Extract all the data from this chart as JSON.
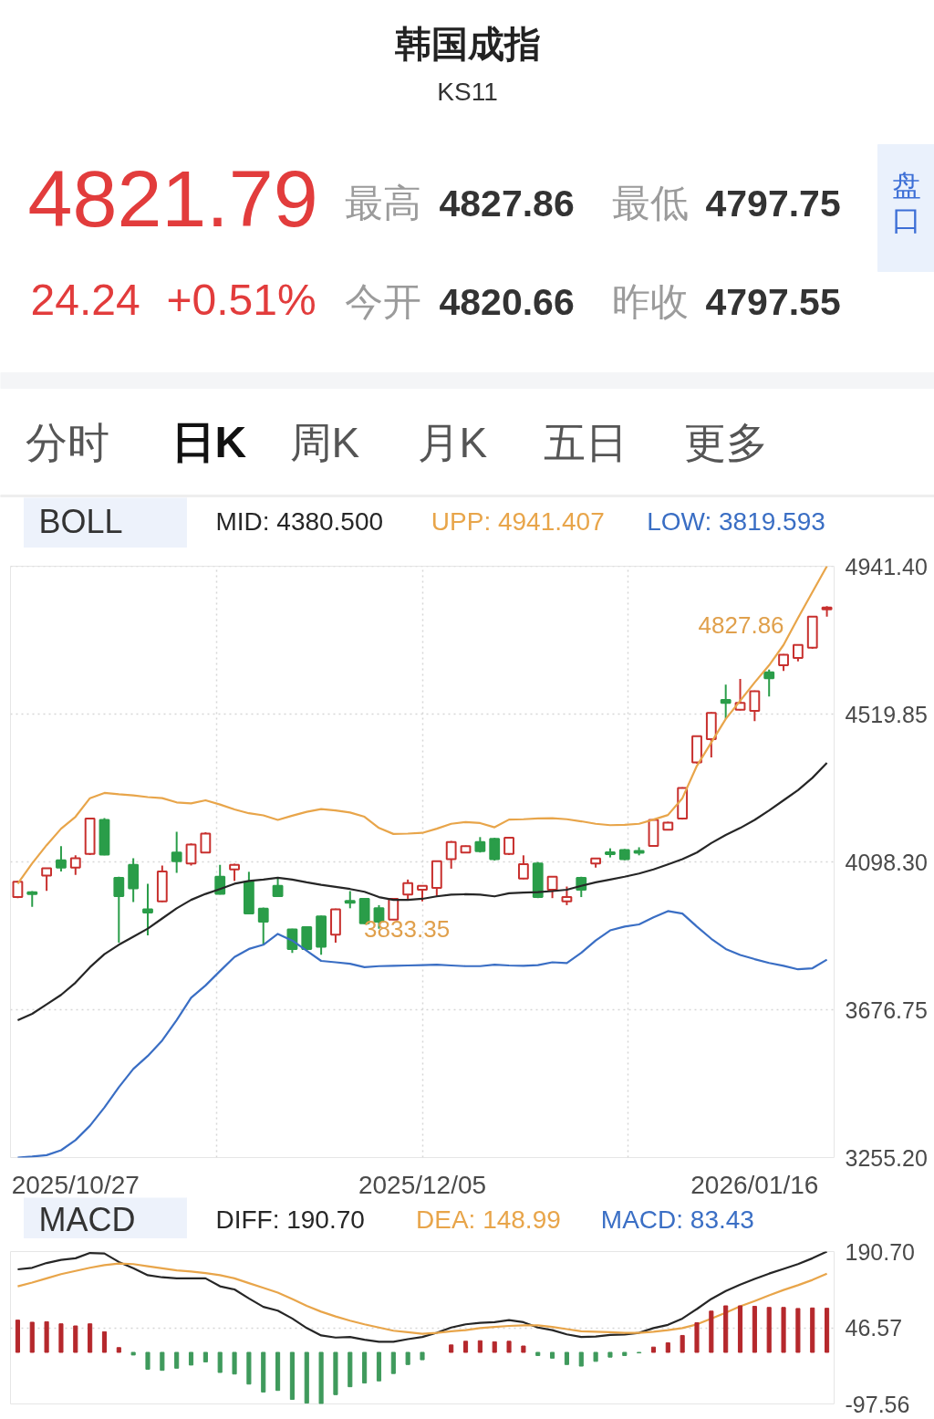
{
  "chart_data": [
    {
      "type": "other",
      "title": "韩国成指",
      "subtitle": "KS11",
      "annotations": [
        "4821.79",
        "24.24",
        "+0.51%",
        "最高",
        "4827.86",
        "最低",
        "4797.75",
        "今开",
        "4820.66",
        "昨收",
        "4797.55",
        "盘口",
        "分时",
        "日K",
        "周K",
        "月K",
        "五日",
        "更多"
      ]
    },
    {
      "type": "candlestick",
      "legend_title": "BOLL",
      "legend": "top",
      "grid": true,
      "categories": [
        null,
        null,
        null,
        null,
        "2025/10/27",
        null,
        null,
        null,
        null,
        null,
        null,
        null,
        null,
        null,
        null,
        null,
        null,
        null,
        null,
        null,
        null,
        null,
        null,
        null,
        null,
        null,
        null,
        null,
        "2025/12/05",
        null,
        null,
        null,
        null,
        null,
        null,
        null,
        null,
        null,
        null,
        null,
        null,
        null,
        null,
        null,
        null,
        null,
        null,
        null,
        null,
        null,
        null,
        "2026/01/16",
        null,
        null,
        null,
        null,
        null
      ],
      "ylim": [
        3255.2,
        4941.407
      ],
      "yticks": [
        {
          "value": 4941.4,
          "label": "4941.40"
        },
        {
          "value": 4519.85,
          "label": "4519.85"
        },
        {
          "value": 4098.3,
          "label": "4098.30"
        },
        {
          "value": 3676.75,
          "label": "3676.75"
        },
        {
          "value": 3255.2,
          "label": "3255.20"
        }
      ],
      "ohlc": [
        [
          3998,
          4044,
          3995,
          4042
        ],
        [
          4010,
          4015,
          3970,
          4008
        ],
        [
          4059,
          4080,
          4016,
          4080
        ],
        [
          4103,
          4143,
          4071,
          4082
        ],
        [
          4082,
          4117,
          4061,
          4109
        ],
        [
          4121,
          4224,
          4118,
          4222
        ],
        [
          4218,
          4223,
          4117,
          4119
        ],
        [
          4053,
          4056,
          3868,
          4001
        ],
        [
          4090,
          4109,
          3984,
          4023
        ],
        [
          3963,
          4036,
          3889,
          3954
        ],
        [
          3986,
          4088,
          3984,
          4071
        ],
        [
          4125,
          4184,
          4067,
          4100
        ],
        [
          4094,
          4151,
          4088,
          4148
        ],
        [
          4125,
          4183,
          4123,
          4179
        ],
        [
          4056,
          4090,
          4005,
          4007
        ],
        [
          4077,
          4093,
          4044,
          4090
        ],
        [
          4042,
          4070,
          3949,
          3951
        ],
        [
          3965,
          3968,
          3862,
          3928
        ],
        [
          4030,
          4051,
          3999,
          4001
        ],
        [
          3906,
          3908,
          3839,
          3850
        ],
        [
          3912,
          3914,
          3845,
          3850
        ],
        [
          3943,
          3945,
          3833.35,
          3856
        ],
        [
          3891,
          3965,
          3868,
          3963
        ],
        [
          3986,
          4015,
          3966,
          3983
        ],
        [
          3993,
          3995,
          3921,
          3923
        ],
        [
          3966,
          3975,
          3908,
          3928
        ],
        [
          3934,
          3995,
          3932,
          3993
        ],
        [
          4005,
          4048,
          3993,
          4038
        ],
        [
          4019,
          4032,
          3986,
          4030
        ],
        [
          4024,
          4102,
          4001,
          4100
        ],
        [
          4106,
          4158,
          4079,
          4155
        ],
        [
          4125,
          4145,
          4123,
          4143
        ],
        [
          4155,
          4169,
          4125,
          4129
        ],
        [
          4164,
          4167,
          4102,
          4106
        ],
        [
          4121,
          4169,
          4118,
          4167
        ],
        [
          4051,
          4117,
          4049,
          4092
        ],
        [
          4094,
          4098,
          3995,
          3998
        ],
        [
          4019,
          4058,
          3995,
          4056
        ],
        [
          3986,
          4028,
          3975,
          3998
        ],
        [
          4053,
          4056,
          3998,
          4019
        ],
        [
          4094,
          4109,
          4082,
          4108
        ],
        [
          4125,
          4137,
          4111,
          4121
        ],
        [
          4132,
          4135,
          4103,
          4106
        ],
        [
          4129,
          4140,
          4117,
          4125
        ],
        [
          4144,
          4220,
          4142,
          4218
        ],
        [
          4190,
          4213,
          4188,
          4210
        ],
        [
          4222,
          4311,
          4219,
          4309
        ],
        [
          4382,
          4459,
          4379,
          4457
        ],
        [
          4448,
          4525,
          4396,
          4523
        ],
        [
          4560,
          4604,
          4506,
          4552
        ],
        [
          4532,
          4620,
          4530,
          4552
        ],
        [
          4529,
          4587,
          4500,
          4585
        ],
        [
          4639,
          4647,
          4570,
          4622
        ],
        [
          4659,
          4691,
          4643,
          4689
        ],
        [
          4680,
          4719,
          4670,
          4717
        ],
        [
          4709,
          4799,
          4706,
          4797.55
        ],
        [
          4820.66,
          4827.86,
          4797.75,
          4821.79
        ]
      ],
      "colors": [
        "#c8302e",
        "#2a9d49",
        "#c8302e",
        "#2a9d49",
        "#c8302e",
        "#c8302e",
        "#2a9d49",
        "#2a9d49",
        "#2a9d49",
        "#2a9d49",
        "#c8302e",
        "#2a9d49",
        "#c8302e",
        "#c8302e",
        "#2a9d49",
        "#c8302e",
        "#2a9d49",
        "#2a9d49",
        "#2a9d49",
        "#2a9d49",
        "#2a9d49",
        "#2a9d49",
        "#c8302e",
        "#2a9d49",
        "#2a9d49",
        "#2a9d49",
        "#c8302e",
        "#c8302e",
        "#c8302e",
        "#c8302e",
        "#c8302e",
        "#c8302e",
        "#2a9d49",
        "#2a9d49",
        "#c8302e",
        "#c8302e",
        "#2a9d49",
        "#c8302e",
        "#c8302e",
        "#2a9d49",
        "#c8302e",
        "#2a9d49",
        "#2a9d49",
        "#2a9d49",
        "#c8302e",
        "#c8302e",
        "#c8302e",
        "#c8302e",
        "#c8302e",
        "#2a9d49",
        "#c8302e",
        "#c8302e",
        "#2a9d49",
        "#c8302e",
        "#c8302e",
        "#c8302e",
        "#c8302e"
      ],
      "series": [
        {
          "name": "MID: 4380.500",
          "type": "line",
          "color": "#262626",
          "values": [
            3647,
            3665,
            3692,
            3719,
            3754,
            3798,
            3835,
            3862,
            3885,
            3908,
            3937,
            3966,
            3990,
            4007,
            4021,
            4036,
            4044,
            4048,
            4053,
            4048,
            4040,
            4033,
            4027,
            4021,
            4013,
            3998,
            3990,
            3990,
            3993,
            4000,
            4005,
            4006,
            4005,
            4000,
            4009,
            4011,
            4012,
            4015,
            4019,
            4030,
            4040,
            4048,
            4056,
            4065,
            4077,
            4091,
            4106,
            4125,
            4152,
            4175,
            4195,
            4218,
            4245,
            4274,
            4303,
            4338,
            4380.5
          ]
        },
        {
          "name": "UPP: 4941.407",
          "type": "line",
          "color": "#e8a54a",
          "values": [
            4036,
            4094,
            4146,
            4193,
            4227,
            4280,
            4295,
            4291,
            4288,
            4283,
            4280,
            4268,
            4265,
            4274,
            4262,
            4248,
            4237,
            4231,
            4218,
            4230,
            4241,
            4249,
            4245,
            4239,
            4227,
            4195,
            4178,
            4179,
            4181,
            4193,
            4207,
            4212,
            4209,
            4197,
            4219,
            4220,
            4222,
            4223,
            4220,
            4214,
            4207,
            4203,
            4204,
            4207,
            4219,
            4232,
            4280,
            4372,
            4439,
            4506,
            4558,
            4610,
            4659,
            4717,
            4794,
            4868,
            4941.407
          ]
        },
        {
          "name": "LOW: 3819.593",
          "type": "line",
          "color": "#3a6ec4",
          "values": [
            3255.2,
            3258,
            3262,
            3276,
            3305,
            3346,
            3398,
            3456,
            3508,
            3545,
            3589,
            3647,
            3711,
            3746,
            3787,
            3827,
            3850,
            3862,
            3893,
            3874,
            3845,
            3816,
            3812,
            3808,
            3798,
            3801,
            3802,
            3803,
            3804,
            3805,
            3803,
            3801,
            3801,
            3805,
            3803,
            3802,
            3804,
            3812,
            3810,
            3839,
            3874,
            3903,
            3914,
            3920,
            3940,
            3958,
            3951,
            3914,
            3879,
            3850,
            3833,
            3821,
            3810,
            3802,
            3792,
            3795,
            3819.593
          ]
        }
      ],
      "annotations": [
        "4827.86",
        "3833.35"
      ]
    },
    {
      "type": "bar",
      "legend_title": "MACD",
      "legend": "top",
      "grid": "y",
      "tick_labels": "y",
      "categories": [
        null,
        null,
        null,
        null,
        null,
        null,
        null,
        null,
        null,
        null,
        null,
        null,
        null,
        null,
        null,
        null,
        null,
        null,
        null,
        null,
        null,
        null,
        null,
        null,
        null,
        null,
        null,
        null,
        null,
        null,
        null,
        null,
        null,
        null,
        null,
        null,
        null,
        null,
        null,
        null,
        null,
        null,
        null,
        null,
        null,
        null,
        null,
        null,
        null,
        null,
        null,
        null,
        null,
        null,
        null,
        null,
        null
      ],
      "ylim": [
        -97.56,
        190.7
      ],
      "yticks": [
        {
          "value": 190.7,
          "label": "190.70"
        },
        {
          "value": 46.57,
          "label": "46.57"
        },
        {
          "value": -97.56,
          "label": "-97.56"
        }
      ],
      "series": [
        {
          "name": "DIFF: 190.70",
          "type": "line",
          "color": "#262626",
          "values": [
            157,
            160,
            169,
            175,
            178,
            188,
            187,
            171,
            159,
            146,
            142,
            140,
            140,
            140,
            125,
            119,
            102,
            86,
            79,
            64,
            46,
            32,
            28,
            29,
            24,
            20,
            20,
            25,
            29,
            37,
            47,
            53,
            56,
            57,
            61,
            57,
            47,
            42,
            34,
            29,
            30,
            33,
            34,
            37,
            46,
            52,
            64,
            82,
            101,
            116,
            128,
            139,
            149,
            158,
            167,
            178,
            190.7
          ]
        },
        {
          "name": "DEA: 148.99",
          "type": "line",
          "color": "#e8a54a",
          "values": [
            125,
            132,
            140,
            148,
            154,
            160,
            165,
            168,
            167,
            163,
            159,
            155,
            153,
            150,
            146,
            140,
            131,
            122,
            113,
            101,
            88,
            77,
            68,
            60,
            53,
            47,
            41,
            38,
            35,
            37,
            40,
            42,
            46,
            48,
            50,
            51,
            51,
            48,
            44,
            40,
            39,
            38,
            37,
            37,
            39,
            42,
            46,
            53,
            64,
            75,
            87,
            97,
            108,
            118,
            127,
            137,
            148.99
          ]
        },
        {
          "type": "bar",
          "values": [
            61,
            57,
            58,
            54,
            50,
            54,
            39,
            9,
            -5,
            -32,
            -34,
            -30,
            -24,
            -18,
            -38,
            -41,
            -60,
            -75,
            -72,
            -89,
            -96,
            -97,
            -80,
            -65,
            -58,
            -54,
            -40,
            -23,
            -14,
            null,
            14,
            21,
            22,
            20,
            21,
            12,
            -6,
            -11,
            -23,
            -26,
            -17,
            -9,
            -6,
            -1,
            10,
            18,
            32,
            56,
            78,
            88,
            88,
            87,
            85,
            85,
            83,
            84,
            83.43
          ],
          "colors": [
            "#b5282c",
            "#b5282c",
            "#b5282c",
            "#b5282c",
            "#b5282c",
            "#b5282c",
            "#b5282c",
            "#b5282c",
            "#3f9a5c",
            "#3f9a5c",
            "#3f9a5c",
            "#3f9a5c",
            "#3f9a5c",
            "#3f9a5c",
            "#3f9a5c",
            "#3f9a5c",
            "#3f9a5c",
            "#3f9a5c",
            "#3f9a5c",
            "#3f9a5c",
            "#3f9a5c",
            "#3f9a5c",
            "#3f9a5c",
            "#3f9a5c",
            "#3f9a5c",
            "#3f9a5c",
            "#3f9a5c",
            "#3f9a5c",
            "#3f9a5c",
            "#b5282c",
            "#b5282c",
            "#b5282c",
            "#b5282c",
            "#b5282c",
            "#b5282c",
            "#b5282c",
            "#3f9a5c",
            "#3f9a5c",
            "#3f9a5c",
            "#3f9a5c",
            "#3f9a5c",
            "#3f9a5c",
            "#3f9a5c",
            "#3f9a5c",
            "#b5282c",
            "#b5282c",
            "#b5282c",
            "#b5282c",
            "#b5282c",
            "#b5282c",
            "#b5282c",
            "#b5282c",
            "#b5282c",
            "#b5282c",
            "#b5282c",
            "#b5282c",
            "#b5282c"
          ]
        }
      ],
      "annotations": [
        "MACD: 83.43"
      ]
    }
  ]
}
